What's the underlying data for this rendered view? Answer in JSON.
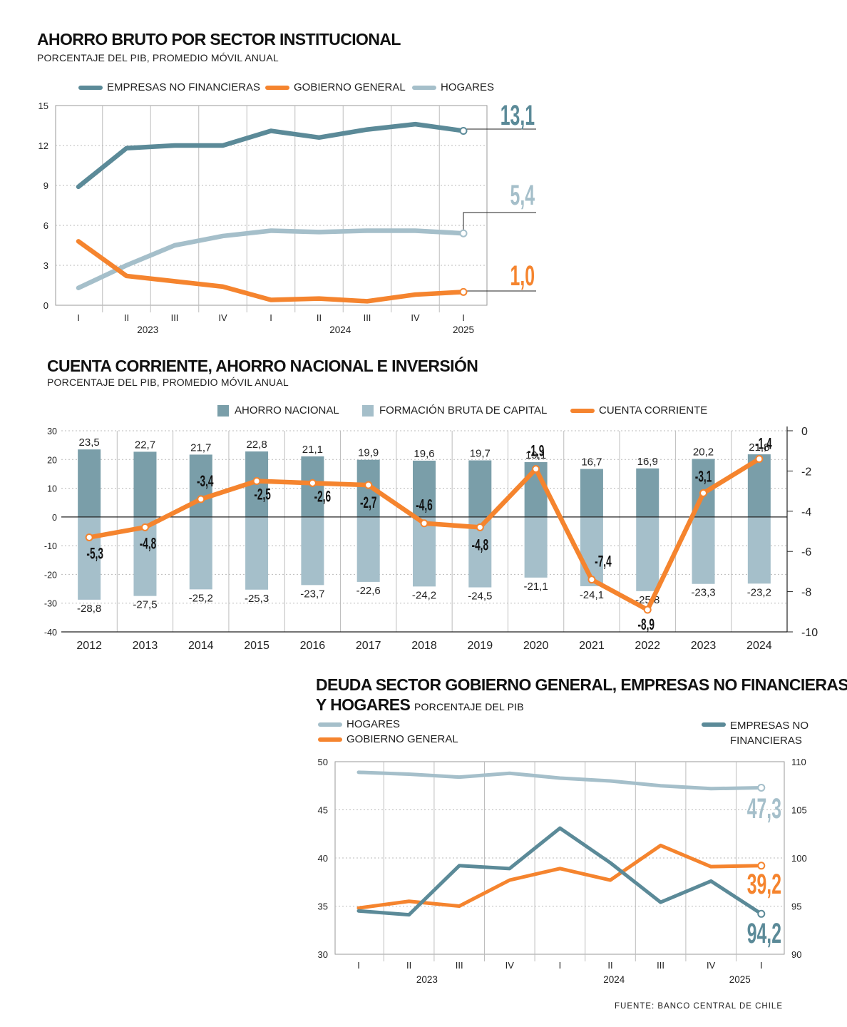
{
  "chart_data": [
    {
      "type": "line",
      "title": "AHORRO BRUTO POR SECTOR INSTITUCIONAL",
      "subtitle": "PORCENTAJE DEL PIB, PROMEDIO MÓVIL ANUAL",
      "categories": [
        "I",
        "II",
        "III",
        "IV",
        "I",
        "II",
        "III",
        "IV",
        "I"
      ],
      "year_labels": [
        "2023",
        "2024",
        "2025"
      ],
      "ylim": [
        0,
        15
      ],
      "yticks": [
        "0",
        "3",
        "6",
        "9",
        "12",
        "15"
      ],
      "series": [
        {
          "name": "EMPRESAS NO FINANCIERAS",
          "color": "#5b8a98",
          "values": [
            8.9,
            11.8,
            12.0,
            12.0,
            13.1,
            12.6,
            13.2,
            13.6,
            13.1
          ],
          "end_label": "13,1"
        },
        {
          "name": "GOBIERNO GENERAL",
          "color": "#f5842e",
          "values": [
            4.8,
            2.2,
            1.8,
            1.4,
            0.4,
            0.5,
            0.3,
            0.8,
            1.0
          ],
          "end_label": "1,0"
        },
        {
          "name": "HOGARES",
          "color": "#a5bfca",
          "values": [
            1.3,
            3.0,
            4.5,
            5.2,
            5.6,
            5.5,
            5.6,
            5.6,
            5.4
          ],
          "end_label": "5,4"
        }
      ]
    },
    {
      "type": "bar",
      "title": "CUENTA CORRIENTE, AHORRO NACIONAL E INVERSIÓN",
      "subtitle": "PORCENTAJE DEL PIB, PROMEDIO MÓVIL ANUAL",
      "categories": [
        "2012",
        "2013",
        "2014",
        "2015",
        "2016",
        "2017",
        "2018",
        "2019",
        "2020",
        "2021",
        "2022",
        "2023",
        "2024"
      ],
      "ylim": [
        -40,
        30
      ],
      "yticks": [
        "30",
        "20",
        "10",
        "0",
        "-10",
        "-20",
        "-30",
        "-40"
      ],
      "y2lim": [
        -10,
        0
      ],
      "y2ticks": [
        "0",
        "-2",
        "-4",
        "-6",
        "-8",
        "-10"
      ],
      "series": [
        {
          "name": "AHORRO NACIONAL",
          "color": "#7a9ea9",
          "values": [
            23.5,
            22.7,
            21.7,
            22.8,
            21.1,
            19.9,
            19.6,
            19.7,
            19.1,
            16.7,
            16.9,
            20.2,
            21.8
          ],
          "labels": [
            "23,5",
            "22,7",
            "21,7",
            "22,8",
            "21,1",
            "19,9",
            "19,6",
            "19,7",
            "19,1",
            "16,7",
            "16,9",
            "20,2",
            "21,8"
          ]
        },
        {
          "name": "FORMACIÓN BRUTA DE CAPITAL",
          "color": "#a5bfca",
          "values": [
            -28.8,
            -27.5,
            -25.2,
            -25.3,
            -23.7,
            -22.6,
            -24.2,
            -24.5,
            -21.1,
            -24.1,
            -25.8,
            -23.3,
            -23.2
          ],
          "labels": [
            "-28,8",
            "-27,5",
            "-25,2",
            "-25,3",
            "-23,7",
            "-22,6",
            "-24,2",
            "-24,5",
            "-21,1",
            "-24,1",
            "-25,8",
            "-23,3",
            "-23,2"
          ]
        },
        {
          "name": "CUENTA CORRIENTE",
          "color": "#f5842e",
          "axis": "right",
          "values": [
            -5.3,
            -4.8,
            -3.4,
            -2.5,
            -2.6,
            -2.7,
            -4.6,
            -4.8,
            -1.9,
            -7.4,
            -8.9,
            -3.1,
            -1.4
          ],
          "labels": [
            "-5,3",
            "-4,8",
            "-3,4",
            "-2,5",
            "-2,6",
            "-2,7",
            "-4,6",
            "-4,8",
            "-1,9",
            "-7,4",
            "-8,9",
            "-3,1",
            "-1,4"
          ]
        }
      ]
    },
    {
      "type": "line",
      "title_line1": "DEUDA SECTOR GOBIERNO GENERAL, EMPRESAS NO FINANCIERAS",
      "title_line2": "Y HOGARES",
      "subtitle": "PORCENTAJE DEL PIB",
      "categories": [
        "I",
        "II",
        "III",
        "IV",
        "I",
        "II",
        "III",
        "IV",
        "I"
      ],
      "year_labels": [
        "2023",
        "2024",
        "2025"
      ],
      "ylim": [
        30,
        50
      ],
      "yticks": [
        "30",
        "35",
        "40",
        "45",
        "50"
      ],
      "y2lim": [
        90,
        110
      ],
      "y2ticks": [
        "90",
        "95",
        "100",
        "105",
        "110"
      ],
      "series": [
        {
          "name": "HOGARES",
          "color": "#a5bfca",
          "values": [
            48.9,
            48.7,
            48.4,
            48.8,
            48.3,
            48.0,
            47.5,
            47.2,
            47.3
          ],
          "end_label": "47,3"
        },
        {
          "name": "GOBIERNO GENERAL",
          "color": "#f5842e",
          "values": [
            34.8,
            35.5,
            35.0,
            37.7,
            38.9,
            37.7,
            41.3,
            39.1,
            39.2
          ],
          "end_label": "39,2"
        },
        {
          "name_line1": "EMPRESAS NO",
          "name_line2": "FINANCIERAS",
          "color": "#5b8a98",
          "axis": "right",
          "values": [
            94.5,
            94.1,
            99.2,
            98.9,
            103.1,
            99.5,
            95.4,
            97.6,
            94.2
          ],
          "end_label": "94,2"
        }
      ]
    }
  ],
  "source": "FUENTE: BANCO CENTRAL DE CHILE"
}
